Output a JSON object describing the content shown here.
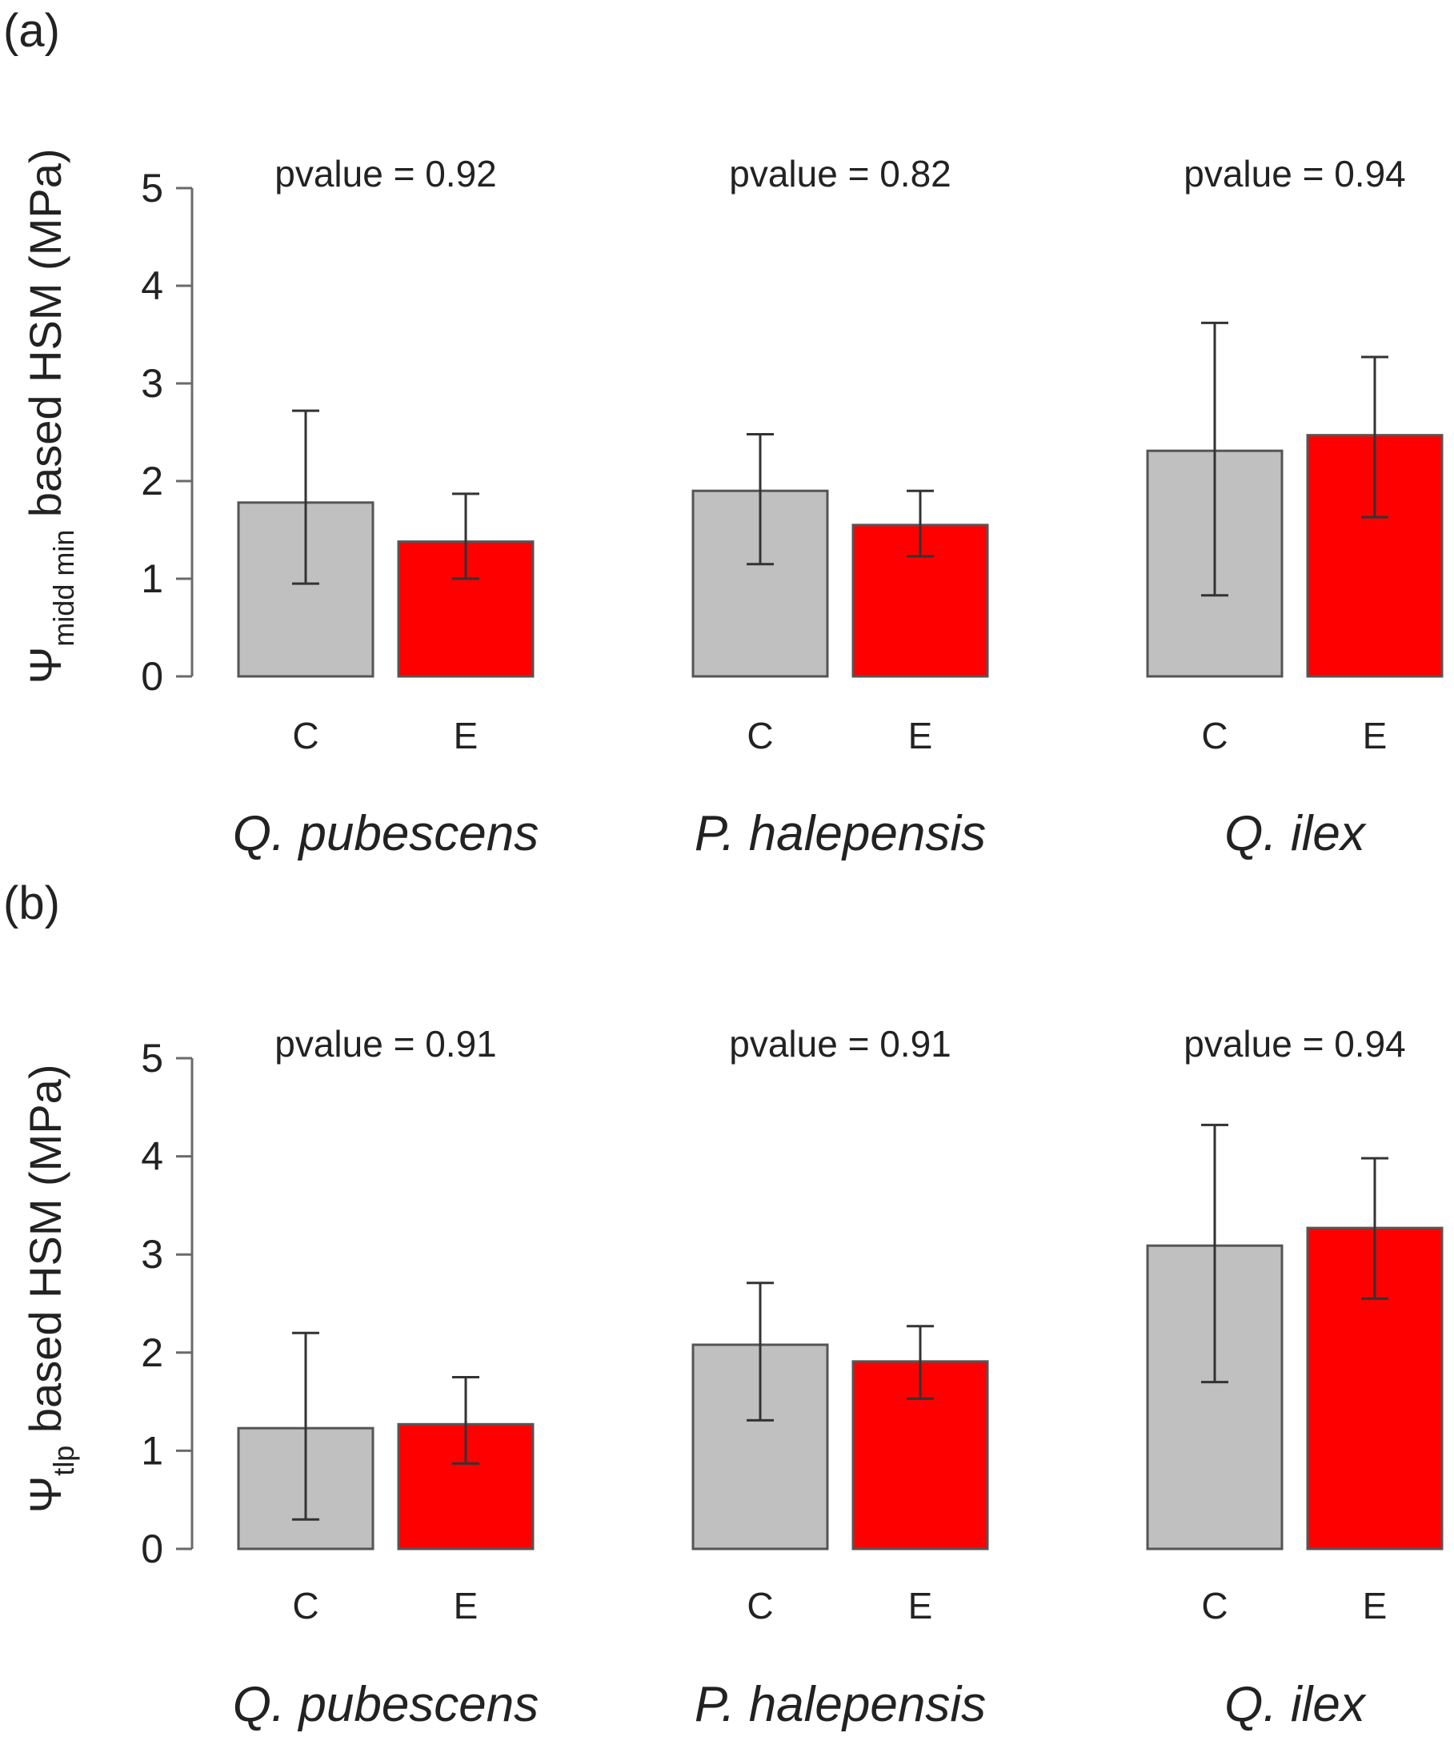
{
  "chart_data": [
    {
      "panel_label": "(a)",
      "type": "bar",
      "ylabel": {
        "symbol": "Ψ",
        "subscript": "midd min",
        "rest": " based HSM (MPa)"
      },
      "ylim": [
        0,
        5
      ],
      "yticks": [
        "0",
        "1",
        "2",
        "3",
        "4",
        "5"
      ],
      "categories": [
        "C",
        "E"
      ],
      "colors": {
        "C": "#c0c0c0",
        "E": "#ff0000"
      },
      "groups": [
        {
          "name": "Q. pubescens",
          "pvalue_text": "pvalue =  0.92",
          "values": [
            1.78,
            1.38
          ],
          "err_low": [
            0.95,
            1.0
          ],
          "err_high": [
            2.72,
            1.87
          ]
        },
        {
          "name": "P. halepensis",
          "pvalue_text": "pvalue =  0.82",
          "values": [
            1.9,
            1.55
          ],
          "err_low": [
            1.15,
            1.23
          ],
          "err_high": [
            2.48,
            1.9
          ]
        },
        {
          "name": "Q. ilex",
          "pvalue_text": "pvalue =  0.94",
          "values": [
            2.31,
            2.47
          ],
          "err_low": [
            0.83,
            1.63
          ],
          "err_high": [
            3.62,
            3.27
          ]
        }
      ]
    },
    {
      "panel_label": "(b)",
      "type": "bar",
      "ylabel": {
        "symbol": "Ψ",
        "subscript": "tlp",
        "rest": " based HSM (MPa)"
      },
      "ylim": [
        0,
        5
      ],
      "yticks": [
        "0",
        "1",
        "2",
        "3",
        "4",
        "5"
      ],
      "categories": [
        "C",
        "E"
      ],
      "colors": {
        "C": "#c0c0c0",
        "E": "#ff0000"
      },
      "groups": [
        {
          "name": "Q. pubescens",
          "pvalue_text": "pvalue =  0.91",
          "values": [
            1.23,
            1.27
          ],
          "err_low": [
            0.3,
            0.87
          ],
          "err_high": [
            2.2,
            1.75
          ]
        },
        {
          "name": "P. halepensis",
          "pvalue_text": "pvalue =  0.91",
          "values": [
            2.08,
            1.91
          ],
          "err_low": [
            1.31,
            1.53
          ],
          "err_high": [
            2.71,
            2.27
          ]
        },
        {
          "name": "Q. ilex",
          "pvalue_text": "pvalue =  0.94",
          "values": [
            3.09,
            3.27
          ],
          "err_low": [
            1.7,
            2.55
          ],
          "err_high": [
            4.32,
            3.98
          ]
        }
      ]
    }
  ]
}
